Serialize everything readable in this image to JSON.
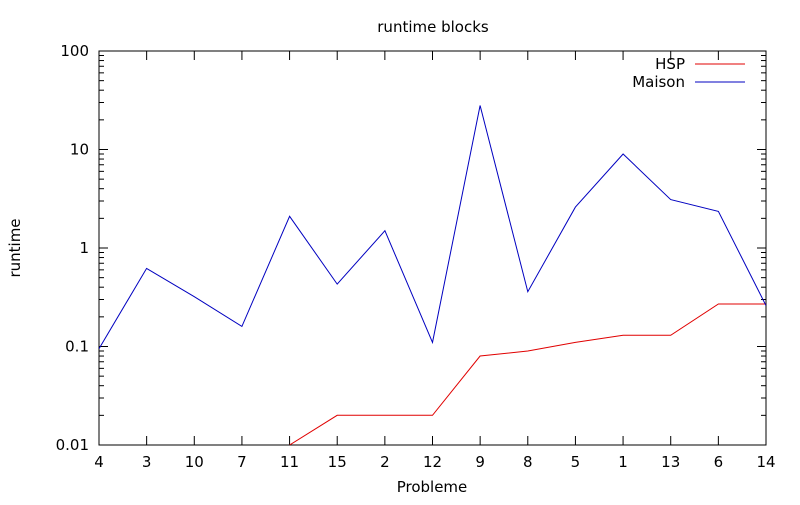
{
  "chart_data": {
    "type": "line",
    "title": "runtime blocks",
    "xlabel": "Probleme",
    "ylabel": "runtime",
    "yscale": "log",
    "ylim": [
      0.01,
      100
    ],
    "y_ticks": [
      {
        "value": 0.01,
        "label": "0.01"
      },
      {
        "value": 0.1,
        "label": "0.1"
      },
      {
        "value": 1,
        "label": "1"
      },
      {
        "value": 10,
        "label": "10"
      },
      {
        "value": 100,
        "label": "100"
      }
    ],
    "categories": [
      "4",
      "3",
      "10",
      "7",
      "11",
      "15",
      "2",
      "12",
      "9",
      "8",
      "5",
      "1",
      "13",
      "6",
      "14"
    ],
    "grid": false,
    "legend_position": "top-right",
    "series": [
      {
        "name": "HSP",
        "color": "#e00000",
        "values": [
          null,
          null,
          null,
          null,
          0.01,
          0.02,
          0.02,
          0.02,
          0.08,
          0.09,
          0.11,
          0.13,
          0.13,
          0.27,
          0.27
        ]
      },
      {
        "name": "Maison",
        "color": "#0000c0",
        "values": [
          0.095,
          0.62,
          0.32,
          0.16,
          2.1,
          0.43,
          1.5,
          0.11,
          28,
          0.36,
          2.6,
          9.0,
          3.1,
          2.35,
          0.26
        ]
      }
    ]
  }
}
